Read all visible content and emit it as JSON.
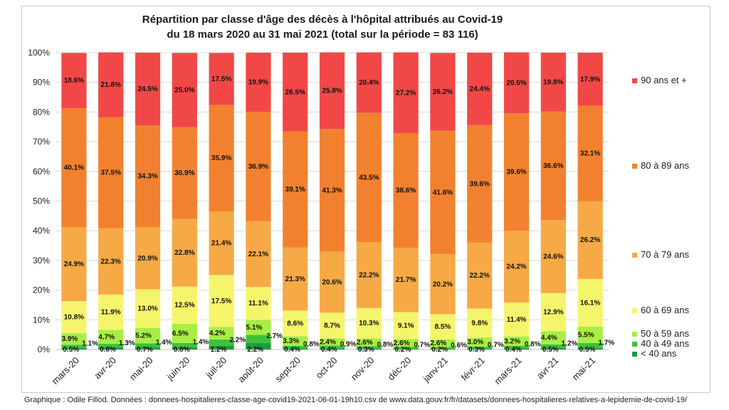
{
  "chart_data": {
    "type": "bar",
    "stacked": true,
    "title": "Répartition  par classe d'âge des décès à l'hôpital attribués au Covid-19",
    "subtitle": "du 18 mars 2020 au 31 mai 2021 (total sur la période = 83 116)",
    "ylim": [
      0,
      100
    ],
    "y_ticks": [
      "0%",
      "10%",
      "20%",
      "30%",
      "40%",
      "50%",
      "60%",
      "70%",
      "80%",
      "90%",
      "100%"
    ],
    "categories": [
      "mars-20",
      "avr-20",
      "mai-20",
      "juin-20",
      "juil-20",
      "août-20",
      "sept-20",
      "oct-20",
      "nov-20",
      "déc-20",
      "janv-21",
      "févr-21",
      "mars-21",
      "avr-21",
      "mai-21"
    ],
    "series": [
      {
        "name": "< 40 ans",
        "color": "#1a9e3c",
        "values": [
          0.5,
          0.6,
          0.7,
          0.8,
          1.2,
          2.2,
          0.4,
          0.4,
          0.3,
          0.2,
          0.2,
          0.3,
          0.4,
          0.5,
          0.5
        ]
      },
      {
        "name": "40 à 49 ans",
        "color": "#3cc23c",
        "values": [
          1.1,
          1.3,
          1.4,
          1.4,
          2.2,
          2.7,
          0.8,
          0.9,
          0.8,
          0.7,
          0.6,
          0.7,
          0.8,
          1.2,
          1.7
        ]
      },
      {
        "name": "50 à 59 ans",
        "color": "#a8ee44",
        "values": [
          3.9,
          4.7,
          5.2,
          6.5,
          4.2,
          5.1,
          3.3,
          2.4,
          2.6,
          2.6,
          2.6,
          3.0,
          3.2,
          4.4,
          5.5
        ]
      },
      {
        "name": "60 à 69 ans",
        "color": "#f5f56b",
        "values": [
          10.8,
          11.9,
          13.0,
          12.5,
          17.5,
          11.1,
          8.6,
          8.7,
          10.3,
          9.1,
          8.5,
          9.8,
          11.4,
          12.9,
          16.1
        ]
      },
      {
        "name": "70 à 79 ans",
        "color": "#f6a945",
        "values": [
          24.9,
          22.3,
          20.9,
          22.8,
          21.4,
          22.1,
          21.3,
          20.6,
          22.2,
          21.7,
          20.2,
          22.2,
          24.2,
          24.6,
          26.2
        ]
      },
      {
        "name": "80 à 89 ans",
        "color": "#f2812f",
        "values": [
          40.1,
          37.5,
          34.3,
          30.9,
          35.9,
          36.9,
          39.1,
          41.3,
          43.5,
          38.6,
          41.6,
          39.6,
          39.6,
          36.6,
          32.1
        ]
      },
      {
        "name": "90 ans et +",
        "color": "#f24747",
        "values": [
          18.6,
          21.8,
          24.5,
          25.0,
          17.5,
          19.9,
          26.5,
          25.8,
          20.4,
          27.2,
          26.2,
          24.4,
          20.5,
          19.8,
          17.9
        ]
      }
    ],
    "legend": [
      "90 ans et +",
      "80 à 89 ans",
      "70 à 79 ans",
      "60 à 69 ans",
      "50 à 59 ans",
      "40 à 49 ans",
      "< 40 ans"
    ],
    "legend_position": "right"
  },
  "footer": "Graphique : Odile Fillod. Données : donnees-hospitalieres-classe-age-covid19-2021-06-01-19h10.csv de www.data.gouv.fr/fr/datasets/donnees-hospitalieres-relatives-a-lepidemie-de-covid-19/"
}
